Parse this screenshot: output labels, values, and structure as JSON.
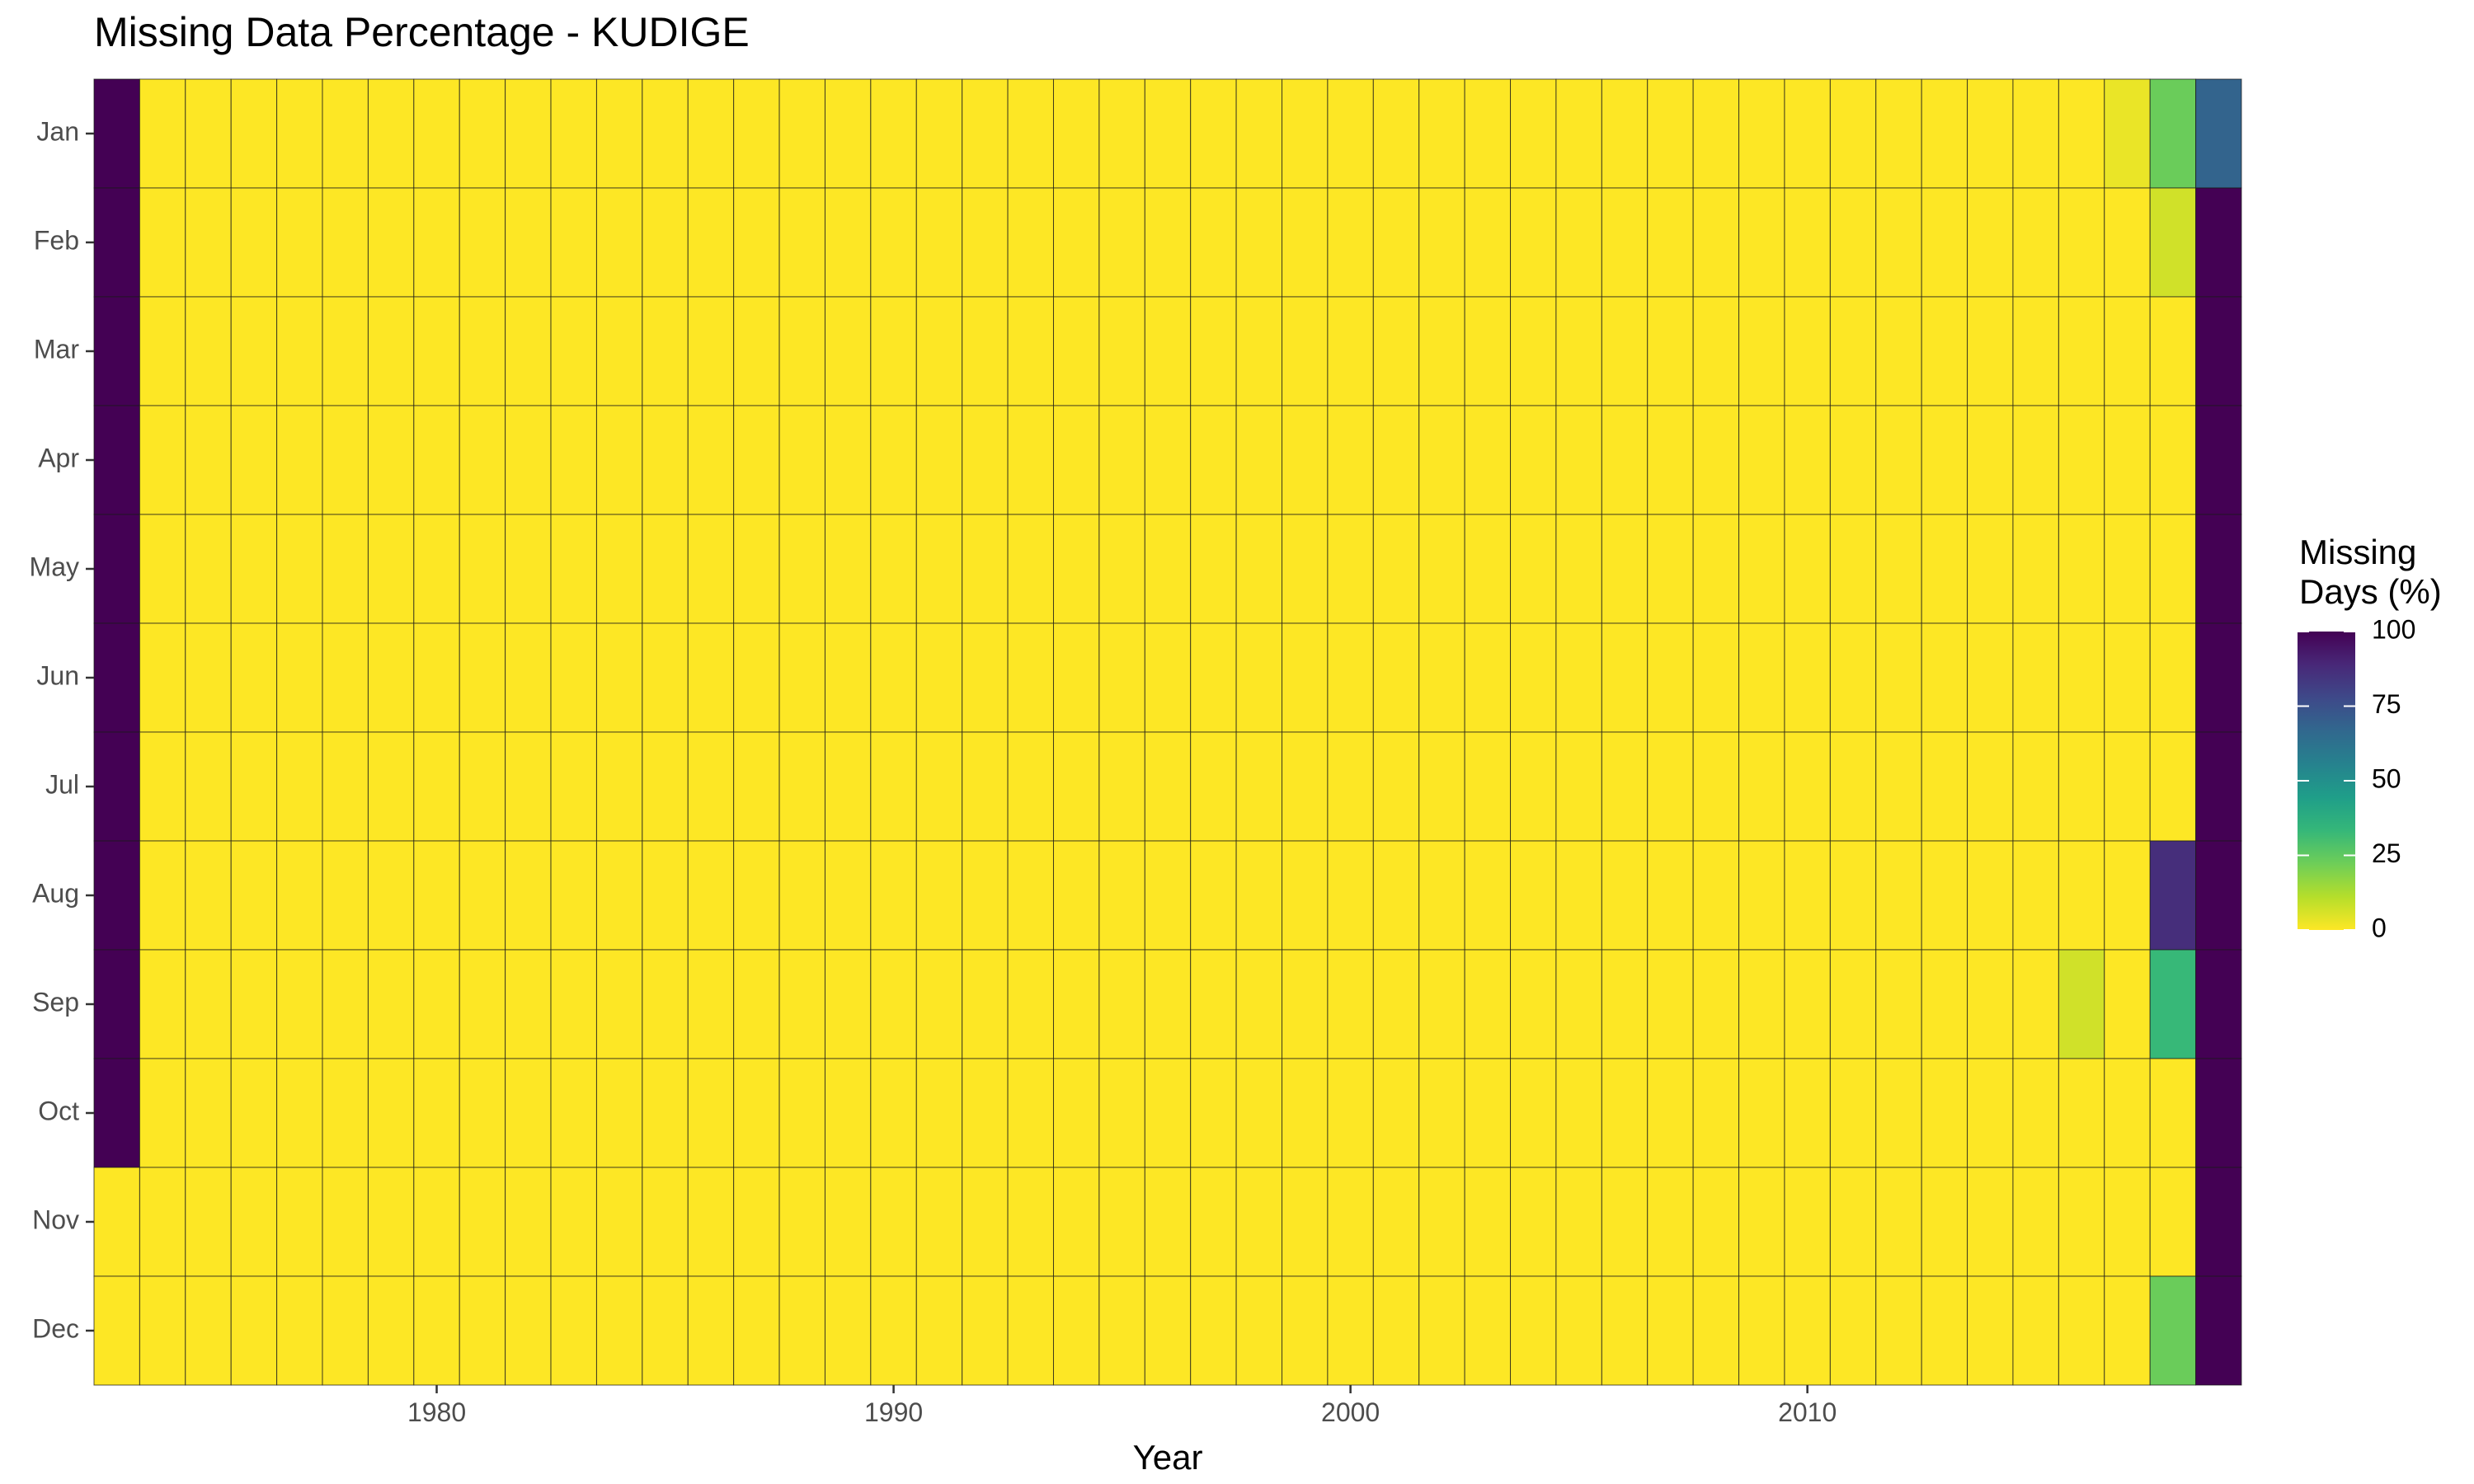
{
  "title": "Missing Data Percentage - KUDIGE",
  "xlabel": "Year",
  "legend_title": [
    "Missing",
    "Days (%)"
  ],
  "colors": {
    "viridis": [
      "#fde725",
      "#b5de2b",
      "#6ece58",
      "#35b779",
      "#1f9e89",
      "#26828e",
      "#31688e",
      "#3e4989",
      "#482878",
      "#440154"
    ],
    "grid_line": "#1a1a1a",
    "tick_label": "#4d4d4d"
  },
  "chart_data": {
    "type": "heatmap",
    "title": "Missing Data Percentage - KUDIGE",
    "xlabel": "Year",
    "ylabel": "",
    "x_range": [
      1973,
      2019
    ],
    "x_ticks": [
      1980,
      1990,
      2000,
      2010
    ],
    "months": [
      "Jan",
      "Feb",
      "Mar",
      "Apr",
      "May",
      "Jun",
      "Jul",
      "Aug",
      "Sep",
      "Oct",
      "Nov",
      "Dec"
    ],
    "default_value": 0,
    "cells": [
      {
        "year": 1973,
        "month": "Jan",
        "value": 100
      },
      {
        "year": 1973,
        "month": "Feb",
        "value": 100
      },
      {
        "year": 1973,
        "month": "Mar",
        "value": 100
      },
      {
        "year": 1973,
        "month": "Apr",
        "value": 100
      },
      {
        "year": 1973,
        "month": "May",
        "value": 100
      },
      {
        "year": 1973,
        "month": "Jun",
        "value": 100
      },
      {
        "year": 1973,
        "month": "Jul",
        "value": 100
      },
      {
        "year": 1973,
        "month": "Aug",
        "value": 100
      },
      {
        "year": 1973,
        "month": "Sep",
        "value": 100
      },
      {
        "year": 1973,
        "month": "Oct",
        "value": 100
      },
      {
        "year": 2017,
        "month": "Jan",
        "value": 3
      },
      {
        "year": 2016,
        "month": "Sep",
        "value": 7
      },
      {
        "year": 2018,
        "month": "Jan",
        "value": 23
      },
      {
        "year": 2018,
        "month": "Feb",
        "value": 7
      },
      {
        "year": 2018,
        "month": "Aug",
        "value": 87
      },
      {
        "year": 2018,
        "month": "Sep",
        "value": 33
      },
      {
        "year": 2018,
        "month": "Dec",
        "value": 23
      },
      {
        "year": 2019,
        "month": "Jan",
        "value": 68
      },
      {
        "year": 2019,
        "month": "Feb",
        "value": 100
      },
      {
        "year": 2019,
        "month": "Mar",
        "value": 100
      },
      {
        "year": 2019,
        "month": "Apr",
        "value": 100
      },
      {
        "year": 2019,
        "month": "May",
        "value": 100
      },
      {
        "year": 2019,
        "month": "Jun",
        "value": 100
      },
      {
        "year": 2019,
        "month": "Jul",
        "value": 100
      },
      {
        "year": 2019,
        "month": "Aug",
        "value": 100
      },
      {
        "year": 2019,
        "month": "Sep",
        "value": 100
      },
      {
        "year": 2019,
        "month": "Oct",
        "value": 100
      },
      {
        "year": 2019,
        "month": "Nov",
        "value": 100
      },
      {
        "year": 2019,
        "month": "Dec",
        "value": 100
      }
    ],
    "legend": {
      "title": "Missing Days (%)",
      "range": [
        0,
        100
      ],
      "ticks": [
        0,
        25,
        50,
        75,
        100
      ],
      "placement": "right"
    },
    "grid": true
  }
}
